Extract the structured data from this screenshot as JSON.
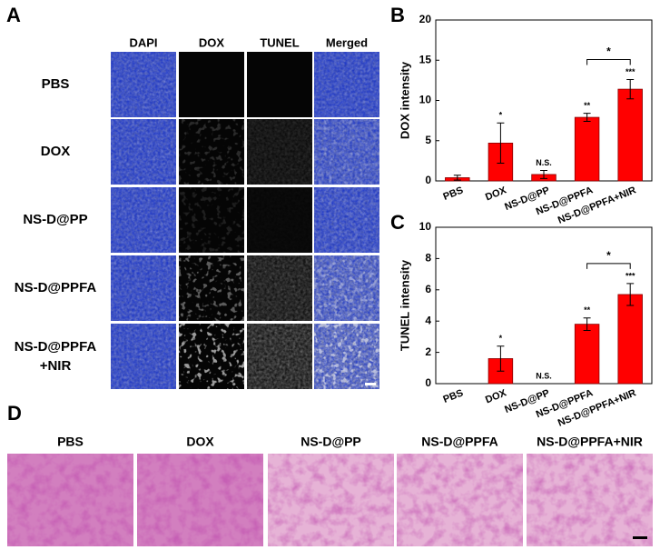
{
  "panel_a": {
    "letter": "A",
    "columns": [
      "DAPI",
      "DOX",
      "TUNEL",
      "Merged"
    ],
    "rows": [
      "PBS",
      "DOX",
      "NS-D@PP",
      "NS-D@PPFA",
      "NS-D@PPFA\n+NIR"
    ]
  },
  "chart_data": [
    {
      "type": "bar",
      "letter": "B",
      "y_label": "DOX intensity",
      "categories": [
        "PBS",
        "DOX",
        "NS-D@PP",
        "NS-D@PPFA",
        "NS-D@PPFA+NIR"
      ],
      "values": [
        0.4,
        4.7,
        0.8,
        7.9,
        11.4
      ],
      "errors": [
        0.3,
        2.5,
        0.5,
        0.5,
        1.2
      ],
      "significance": [
        null,
        "*",
        "N.S.",
        "**",
        "***"
      ],
      "bracket": {
        "label": "*",
        "between": [
          "NS-D@PPFA",
          "NS-D@PPFA+NIR"
        ]
      },
      "color": "#ff0000",
      "ylim": [
        0,
        20
      ],
      "yticks": [
        0,
        5,
        10,
        15,
        20
      ]
    },
    {
      "type": "bar",
      "letter": "C",
      "y_label": "TUNEL intensity",
      "categories": [
        "PBS",
        "DOX",
        "NS-D@PP",
        "NS-D@PPFA",
        "NS-D@PPFA+NIR"
      ],
      "values": [
        0,
        1.6,
        0,
        3.8,
        5.7
      ],
      "errors": [
        0,
        0.8,
        0,
        0.4,
        0.7
      ],
      "significance": [
        null,
        "*",
        "N.S.",
        "**",
        "***"
      ],
      "bracket": {
        "label": "*",
        "between": [
          "NS-D@PPFA",
          "NS-D@PPFA+NIR"
        ]
      },
      "color": "#ff0000",
      "ylim": [
        0,
        10
      ],
      "yticks": [
        0,
        2,
        4,
        6,
        8,
        10
      ]
    }
  ],
  "panel_d": {
    "letter": "D",
    "columns": [
      "PBS",
      "DOX",
      "NS-D@PP",
      "NS-D@PPFA",
      "NS-D@PPFA+NIR"
    ]
  }
}
